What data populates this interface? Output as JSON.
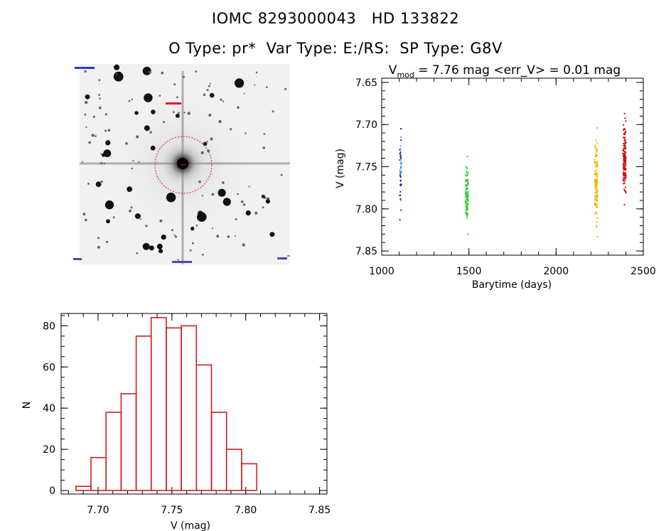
{
  "header": {
    "line1": "IOMC 8293000043   HD 133822",
    "line2": "O Type: pr*  Var Type: E:/RS:  SP Type: G8V"
  },
  "image_panel": {
    "alt": "finder image"
  },
  "chart_data": [
    {
      "id": "lightcurve",
      "type": "scatter",
      "title_parts": {
        "v": "V",
        "sub": "mod",
        "rest": " = 7.76 mag <err_V> = 0.01 mag"
      },
      "xlabel": "Barytime (days)",
      "ylabel": "V (mag)",
      "xlim": [
        1000,
        2500
      ],
      "ylim": [
        7.855,
        7.645
      ],
      "xticks": [
        1000,
        1500,
        2000,
        2500
      ],
      "yticks": [
        7.65,
        7.7,
        7.75,
        7.8,
        7.85
      ],
      "ytick_labels": [
        "7.65",
        "7.70",
        "7.75",
        "7.80",
        "7.85"
      ],
      "grid": false,
      "series": [
        {
          "color": "#1a1aa8",
          "x_range": [
            1104,
            1112
          ],
          "y_range": [
            7.705,
            7.813
          ],
          "n": 35
        },
        {
          "color": "#36c0e8",
          "x_range": [
            1104,
            1112
          ],
          "y_range": [
            7.715,
            7.79
          ],
          "n": 12
        },
        {
          "color": "#2ed12e",
          "x_range": [
            1480,
            1496
          ],
          "y_range": [
            7.738,
            7.83
          ],
          "n": 95
        },
        {
          "color": "#f0b800",
          "x_range": [
            2222,
            2238
          ],
          "y_range": [
            7.704,
            7.833
          ],
          "n": 120
        },
        {
          "color": "#cc1010",
          "x_range": [
            2384,
            2400
          ],
          "y_range": [
            7.687,
            7.795
          ],
          "n": 140
        }
      ]
    },
    {
      "id": "histogram",
      "type": "bar",
      "xlabel": "V (mag)",
      "ylabel": "N",
      "xlim": [
        7.675,
        7.855
      ],
      "ylim": [
        0,
        86
      ],
      "xticks": [
        7.7,
        7.75,
        7.8,
        7.85
      ],
      "xtick_labels": [
        "7.70",
        "7.75",
        "7.80",
        "7.85"
      ],
      "yticks": [
        0,
        20,
        40,
        60,
        80
      ],
      "bin_start": 7.685,
      "bin_width": 0.0102,
      "values": [
        2,
        16,
        38,
        47,
        75,
        84,
        79,
        80,
        61,
        38,
        20,
        13
      ],
      "bar_color": "#cc2020"
    }
  ]
}
